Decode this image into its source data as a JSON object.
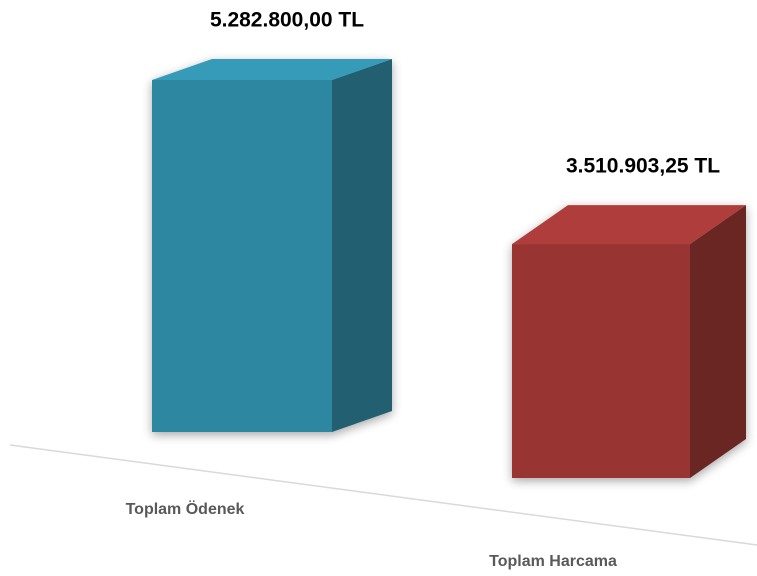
{
  "chart_data": {
    "type": "bar3d",
    "categories": [
      "Toplam Ödenek",
      "Toplam Harcama"
    ],
    "values": [
      5282800,
      3510903.25
    ],
    "value_labels": [
      "5.282.800,00 TL",
      "3.510.903,25 TL"
    ],
    "colors": [
      "#2e87a1",
      "#983533"
    ]
  }
}
